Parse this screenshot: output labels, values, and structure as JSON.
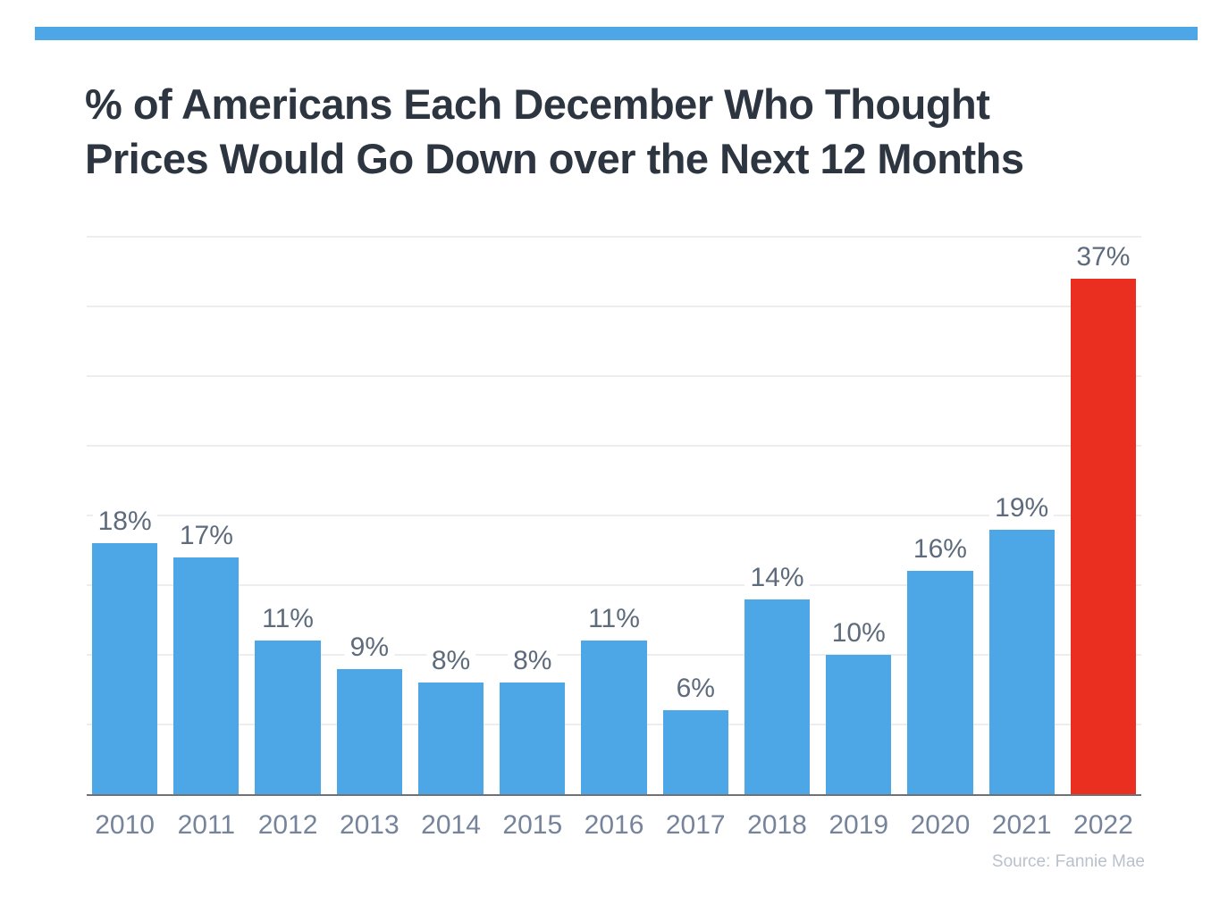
{
  "page": {
    "background_color": "#ffffff",
    "accent_stripe_color": "#4da7e6"
  },
  "title": {
    "lines": [
      "% of Americans Each December Who Thought",
      "Prices Would Go Down over the Next 12 Months"
    ],
    "color": "#2c3540"
  },
  "chart_data": {
    "type": "bar",
    "title": "% of Americans Each December Who Thought Prices Would Go Down over the Next 12 Months",
    "categories": [
      "2010",
      "2011",
      "2012",
      "2013",
      "2014",
      "2015",
      "2016",
      "2017",
      "2018",
      "2019",
      "2020",
      "2021",
      "2022"
    ],
    "values": [
      18,
      17,
      11,
      9,
      8,
      8,
      11,
      6,
      14,
      10,
      16,
      19,
      37
    ],
    "data_labels": [
      "18%",
      "17%",
      "11%",
      "9%",
      "8%",
      "8%",
      "11%",
      "6%",
      "14%",
      "10%",
      "16%",
      "19%",
      "37%"
    ],
    "highlight_index": 12,
    "xlabel": "",
    "ylabel": "",
    "ylim": [
      0,
      40
    ],
    "gridline_interval": 5,
    "grid": "horizontal",
    "y_axis_labels_visible": false,
    "legend": "none",
    "colors": {
      "bar_default": "#4da7e6",
      "bar_highlight": "#ea2f20",
      "gridline": "#ededef",
      "axis_line": "#707274",
      "value_label": "#5d6b7c",
      "year_label": "#75849b"
    }
  },
  "source": {
    "text": "Source: Fannie Mae",
    "color": "#b9c1cb"
  }
}
